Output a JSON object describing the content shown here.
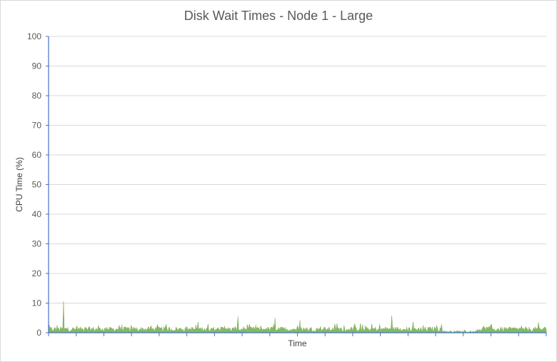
{
  "chart_data": {
    "type": "area",
    "title": "Disk Wait Times - Node 1 - Large",
    "xlabel": "Time",
    "ylabel": "CPU Time (%)",
    "ylim": [
      0,
      100
    ],
    "yticks": [
      0,
      10,
      20,
      30,
      40,
      50,
      60,
      70,
      80,
      90,
      100
    ],
    "grid": true,
    "legend": "none",
    "series": [
      {
        "color": "#70ad47",
        "baseline_level": 1.2,
        "spikes": [
          {
            "x": 0.03,
            "y": 10.5
          },
          {
            "x": 0.38,
            "y": 5.5
          },
          {
            "x": 0.455,
            "y": 5.0
          },
          {
            "x": 0.505,
            "y": 4.2
          },
          {
            "x": 0.575,
            "y": 3.0
          },
          {
            "x": 0.65,
            "y": 3.0
          },
          {
            "x": 0.69,
            "y": 5.8
          }
        ]
      }
    ]
  }
}
